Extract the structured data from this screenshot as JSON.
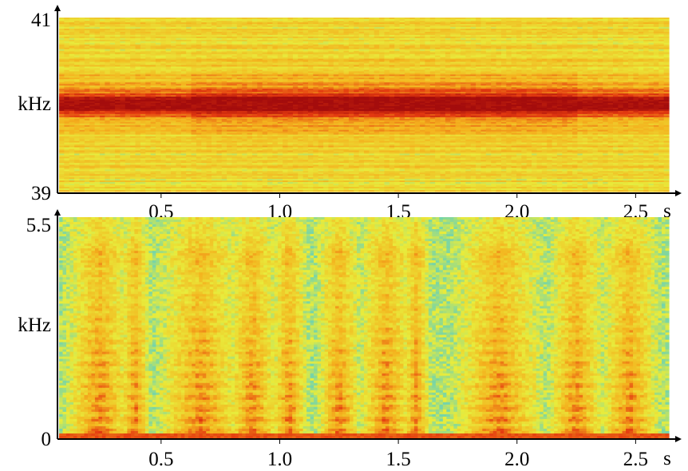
{
  "chart_data": [
    {
      "type": "heatmap",
      "title": "",
      "xlabel": "s",
      "ylabel": "kHz",
      "xlim": [
        0.07,
        2.64
      ],
      "ylim": [
        39,
        41
      ],
      "x_ticks": [
        "0.5",
        "1.0",
        "1.5",
        "2.0",
        "2.5"
      ],
      "x_tick_values": [
        0.5,
        1.0,
        1.5,
        2.0,
        2.5
      ],
      "y_tick_labels": [
        "39",
        "41"
      ],
      "y_tick_values": [
        39,
        41
      ],
      "colormap": [
        "#3cc8e0",
        "#e8ec3c",
        "#f4b21e",
        "#e43a10",
        "#a40c0c"
      ],
      "description_values": {
        "dominant_band_khz": 40.0,
        "band_intensity": "max",
        "background_level": "mid"
      }
    },
    {
      "type": "heatmap",
      "title": "",
      "xlabel": "s",
      "ylabel": "kHz",
      "xlim": [
        0.07,
        2.64
      ],
      "ylim": [
        0,
        5.5
      ],
      "x_ticks": [
        "0.5",
        "1.0",
        "1.5",
        "2.0",
        "2.5"
      ],
      "x_tick_values": [
        0.5,
        1.0,
        1.5,
        2.0,
        2.5
      ],
      "y_tick_labels": [
        "0",
        "5.5"
      ],
      "y_tick_values": [
        0,
        5.5
      ],
      "colormap": [
        "#3cc8e0",
        "#e8ec3c",
        "#f4b21e",
        "#e43a10",
        "#a40c0c"
      ],
      "speech_segments_s": [
        [
          0.15,
          0.33
        ],
        [
          0.36,
          0.42
        ],
        [
          0.55,
          0.78
        ],
        [
          0.82,
          0.95
        ],
        [
          1.0,
          1.08
        ],
        [
          1.2,
          1.3
        ],
        [
          1.38,
          1.52
        ],
        [
          1.55,
          1.6
        ],
        [
          1.8,
          2.05
        ],
        [
          2.18,
          2.32
        ],
        [
          2.4,
          2.55
        ]
      ]
    }
  ],
  "colors": {
    "axis": "#000000",
    "background": "#ffffff"
  }
}
